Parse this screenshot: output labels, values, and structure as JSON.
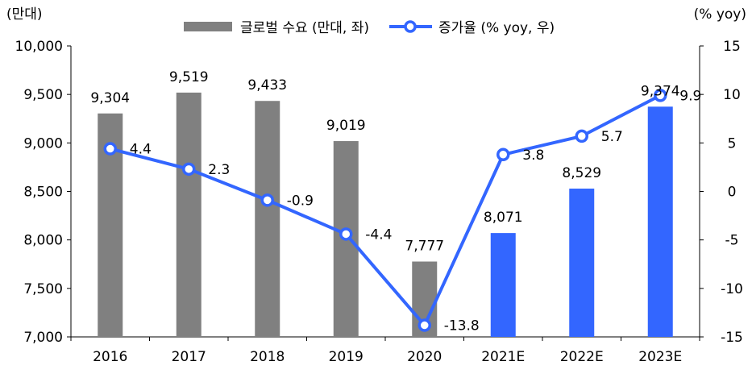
{
  "chart_data": {
    "type": "bar",
    "categories": [
      "2016",
      "2017",
      "2018",
      "2019",
      "2020",
      "2021E",
      "2022E",
      "2023E"
    ],
    "series": [
      {
        "name": "글로벌 수요 (만대, 좌)",
        "type": "bar",
        "axis": "left",
        "values": [
          9304,
          9519,
          9433,
          9019,
          7777,
          8071,
          8529,
          9374
        ],
        "labels": [
          "9,304",
          "9,519",
          "9,433",
          "9,019",
          "7,777",
          "8,071",
          "8,529",
          "9,374"
        ],
        "colors": [
          "#808080",
          "#808080",
          "#808080",
          "#808080",
          "#808080",
          "#3366ff",
          "#3366ff",
          "#3366ff"
        ]
      },
      {
        "name": "증가율 (% yoy, 우)",
        "type": "line",
        "axis": "right",
        "values": [
          4.4,
          2.3,
          -0.9,
          -4.4,
          -13.8,
          3.8,
          5.7,
          9.9
        ],
        "labels": [
          "4.4",
          "2.3",
          "-0.9",
          "-4.4",
          "-13.8",
          "3.8",
          "5.7",
          "9.9"
        ],
        "color": "#3366ff"
      }
    ],
    "left_axis": {
      "unit": "(만대)",
      "ylim": [
        7000,
        10000
      ],
      "ticks": [
        7000,
        7500,
        8000,
        8500,
        9000,
        9500,
        10000
      ],
      "tick_labels": [
        "7,000",
        "7,500",
        "8,000",
        "8,500",
        "9,000",
        "9,500",
        "10,000"
      ]
    },
    "right_axis": {
      "unit": "(% yoy)",
      "ylim": [
        -15,
        15
      ],
      "ticks": [
        -15,
        -10,
        -5,
        0,
        5,
        10,
        15
      ],
      "tick_labels": [
        "-15",
        "-10",
        "-5",
        "0",
        "5",
        "10",
        "15"
      ]
    },
    "legend": {
      "position": "top-center",
      "items": [
        {
          "label": "글로벌 수요 (만대, 좌)",
          "marker": "bar",
          "color": "#808080"
        },
        {
          "label": "증가율 (% yoy, 우)",
          "marker": "line-circle",
          "color": "#3366ff"
        }
      ]
    },
    "grid": false
  }
}
